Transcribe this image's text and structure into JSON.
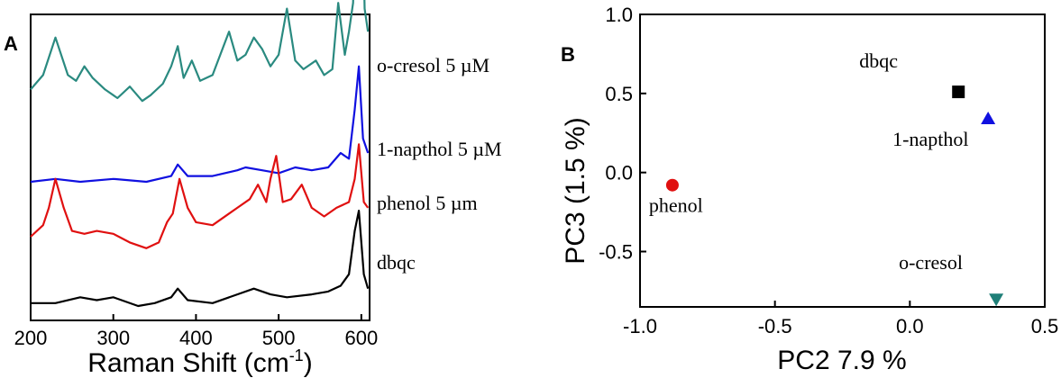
{
  "chart_data": [
    {
      "panel": "A",
      "type": "line",
      "xlabel": "Raman Shift (cm",
      "xlabel_sup": "-1",
      "xlabel_close": ")",
      "xlim": [
        200,
        610
      ],
      "xticks": [
        200,
        300,
        400,
        500,
        600
      ],
      "y_axis_ticks": false,
      "series": [
        {
          "name": "o-cresol   5 µM",
          "color": "#2a8a80",
          "baseline": 0.8,
          "x": [
            200,
            215,
            230,
            245,
            255,
            265,
            275,
            290,
            305,
            320,
            335,
            345,
            360,
            370,
            378,
            385,
            395,
            405,
            420,
            440,
            450,
            460,
            470,
            480,
            490,
            500,
            510,
            520,
            530,
            545,
            555,
            565,
            572,
            580,
            585,
            590,
            594,
            597,
            600,
            604,
            608
          ],
          "y": [
            0.0,
            0.05,
            0.18,
            0.05,
            0.03,
            0.08,
            0.04,
            0.0,
            -0.03,
            0.01,
            -0.04,
            -0.02,
            0.02,
            0.08,
            0.15,
            0.04,
            0.1,
            0.03,
            0.05,
            0.2,
            0.1,
            0.12,
            0.18,
            0.14,
            0.08,
            0.12,
            0.28,
            0.1,
            0.07,
            0.1,
            0.05,
            0.07,
            0.3,
            0.12,
            0.2,
            0.3,
            0.75,
            1.0,
            0.8,
            0.28,
            0.2
          ]
        },
        {
          "name": "1-napthol 5 µM",
          "color": "#1010e0",
          "baseline": 0.48,
          "x": [
            200,
            230,
            260,
            300,
            340,
            370,
            378,
            390,
            420,
            450,
            460,
            480,
            500,
            520,
            540,
            560,
            575,
            585,
            592,
            597,
            602,
            608
          ],
          "y": [
            0.0,
            0.01,
            0.0,
            0.01,
            0.0,
            0.02,
            0.06,
            0.02,
            0.02,
            0.04,
            0.05,
            0.04,
            0.03,
            0.05,
            0.04,
            0.05,
            0.1,
            0.08,
            0.25,
            0.4,
            0.15,
            0.1
          ]
        },
        {
          "name": "phenol 5 µm",
          "color": "#e01010",
          "baseline": 0.29,
          "x": [
            200,
            215,
            222,
            230,
            240,
            250,
            265,
            280,
            300,
            320,
            340,
            355,
            365,
            372,
            380,
            390,
            400,
            420,
            440,
            450,
            465,
            475,
            485,
            490,
            497,
            505,
            515,
            528,
            540,
            555,
            570,
            585,
            592,
            597,
            603,
            608
          ],
          "y": [
            0.0,
            0.04,
            0.1,
            0.2,
            0.1,
            0.02,
            0.01,
            0.02,
            0.01,
            -0.02,
            -0.04,
            -0.02,
            0.05,
            0.08,
            0.2,
            0.1,
            0.05,
            0.04,
            0.08,
            0.1,
            0.13,
            0.18,
            0.12,
            0.2,
            0.28,
            0.12,
            0.13,
            0.18,
            0.1,
            0.07,
            0.1,
            0.12,
            0.2,
            0.32,
            0.12,
            0.1
          ]
        },
        {
          "name": "dbqc",
          "color": "#000000",
          "baseline": 0.06,
          "x": [
            200,
            230,
            260,
            280,
            300,
            330,
            350,
            370,
            378,
            390,
            420,
            450,
            470,
            490,
            510,
            540,
            560,
            575,
            585,
            592,
            597,
            603,
            608
          ],
          "y": [
            0.0,
            0.0,
            0.02,
            0.01,
            0.02,
            -0.01,
            0.0,
            0.02,
            0.05,
            0.01,
            0.0,
            0.03,
            0.05,
            0.03,
            0.02,
            0.03,
            0.04,
            0.06,
            0.1,
            0.25,
            0.32,
            0.1,
            0.05
          ]
        }
      ]
    },
    {
      "panel": "B",
      "type": "scatter",
      "xlabel": "PC2 7.9 %",
      "ylabel": "PC3 (1.5 %)",
      "xlim": [
        -1.0,
        0.5
      ],
      "ylim": [
        -0.85,
        1.0
      ],
      "xticks": [
        -1.0,
        -0.5,
        0.0,
        0.5
      ],
      "xtick_labels": [
        "-1.0",
        "-0.5",
        "0.0",
        "0.5"
      ],
      "yticks": [
        -0.5,
        0.0,
        0.5,
        1.0
      ],
      "ytick_labels": [
        "-0.5",
        "0.0",
        "0.5",
        "1.0"
      ],
      "points": [
        {
          "label": "dbqc",
          "x": 0.18,
          "y": 0.51,
          "marker": "square",
          "color": "#000000"
        },
        {
          "label": "1-napthol",
          "x": 0.29,
          "y": 0.34,
          "marker": "triangle-up",
          "color": "#1010e0"
        },
        {
          "label": "phenol",
          "x": -0.88,
          "y": -0.08,
          "marker": "circle",
          "color": "#e01010"
        },
        {
          "label": "o-cresol",
          "x": 0.32,
          "y": -0.8,
          "marker": "triangle-down",
          "color": "#1f7f78"
        }
      ]
    }
  ],
  "panels": {
    "a_label": "A",
    "b_label": "B"
  }
}
